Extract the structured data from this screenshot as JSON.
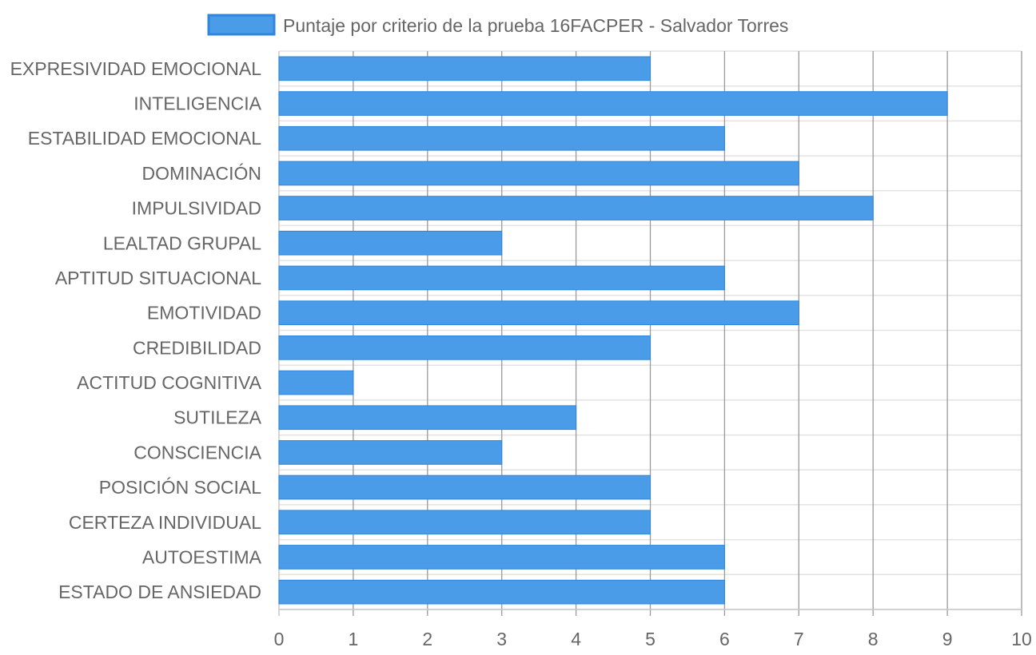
{
  "chart_data": {
    "type": "bar",
    "orientation": "horizontal",
    "categories": [
      "EXPRESIVIDAD EMOCIONAL",
      "INTELIGENCIA",
      "ESTABILIDAD EMOCIONAL",
      "DOMINACIÓN",
      "IMPULSIVIDAD",
      "LEALTAD GRUPAL",
      "APTITUD SITUACIONAL",
      "EMOTIVIDAD",
      "CREDIBILIDAD",
      "ACTITUD COGNITIVA",
      "SUTILEZA",
      "CONSCIENCIA",
      "POSICIÓN SOCIAL",
      "CERTEZA INDIVIDUAL",
      "AUTOESTIMA",
      "ESTADO DE ANSIEDAD"
    ],
    "series": [
      {
        "name": "Puntaje por criterio de la prueba 16FACPER - Salvador Torres",
        "values": [
          5,
          9,
          6,
          7,
          8,
          3,
          6,
          7,
          5,
          1,
          4,
          3,
          5,
          5,
          6,
          6
        ],
        "color": "#4a9be8",
        "border_color": "#2e86de"
      }
    ],
    "xlim": [
      0,
      10
    ],
    "x_ticks": [
      "0",
      "1",
      "2",
      "3",
      "4",
      "5",
      "6",
      "7",
      "8",
      "9",
      "10"
    ],
    "grid": true,
    "legend_position": "top"
  }
}
